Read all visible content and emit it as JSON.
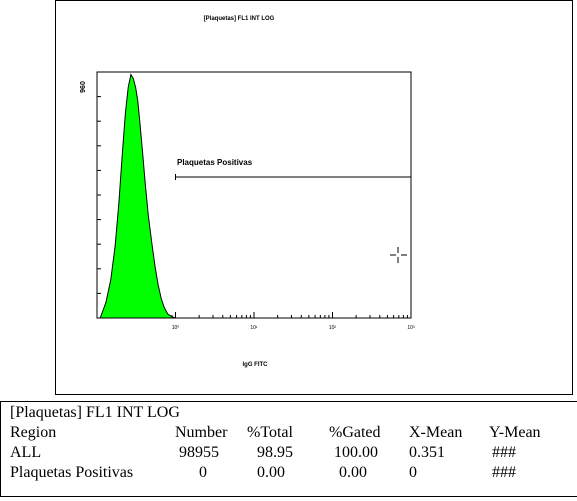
{
  "chart_data": {
    "type": "area",
    "title": "[Plaquetas] FL1 INT LOG",
    "xlabel": "IgG FITC",
    "ylabel": "",
    "x_scale": "log",
    "xlim": [
      0.1,
      1000
    ],
    "ylim": [
      0,
      960
    ],
    "y_tick_label": "960",
    "x_tick_labels": [
      "10⁰",
      "10¹",
      "10²",
      "10³"
    ],
    "x_tick_values": [
      1,
      10,
      100,
      1000
    ],
    "fill_color": "#00ff00",
    "series": [
      {
        "x": [
          0.11,
          0.13,
          0.15,
          0.17,
          0.19,
          0.21,
          0.23,
          0.25,
          0.27,
          0.29,
          0.31,
          0.33,
          0.35,
          0.38,
          0.41,
          0.45,
          0.5,
          0.55,
          0.6,
          0.66,
          0.72,
          0.8,
          0.9,
          1.0
        ],
        "y": [
          0,
          60,
          150,
          280,
          450,
          640,
          800,
          900,
          950,
          935,
          900,
          850,
          770,
          650,
          530,
          400,
          290,
          200,
          130,
          75,
          40,
          15,
          5,
          0
        ]
      }
    ],
    "regions": [
      {
        "name": "Plaquetas Positivas",
        "x_start": 1.0,
        "x_end": 1000
      }
    ]
  },
  "table": {
    "title": "[Plaquetas] FL1 INT LOG",
    "headers": [
      "Region",
      "Number",
      "%Total",
      "%Gated",
      "X-Mean",
      "Y-Mean"
    ],
    "rows": [
      [
        "ALL",
        "98955",
        "98.95",
        "100.00",
        "0.351",
        "###"
      ],
      [
        "Plaquetas Positivas",
        "0",
        "0.00",
        "0.00",
        "0",
        "###"
      ]
    ]
  }
}
